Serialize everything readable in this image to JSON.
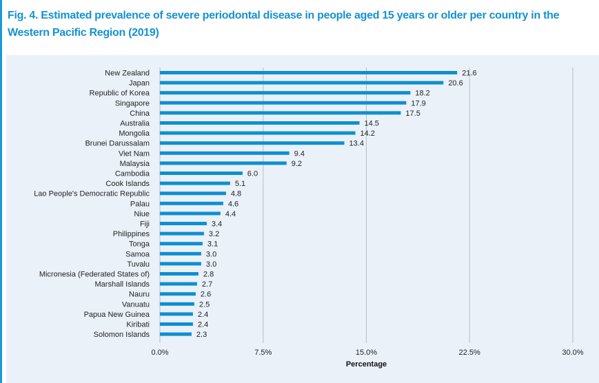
{
  "title": "Fig. 4. Estimated prevalence of severe periodontal disease in people aged 15 years or older per country in the Western Pacific Region (2019)",
  "colors": {
    "bar": "#0e8fd0",
    "grid": "#b9bfc6",
    "panel": "#eaf1f9",
    "title": "#1592d0"
  },
  "chart_data": {
    "type": "bar",
    "orientation": "horizontal",
    "xlabel": "Percentage",
    "xlim": [
      0,
      30
    ],
    "xticks": [
      0,
      7.5,
      15,
      22.5,
      30
    ],
    "xtick_labels": [
      "0.0%",
      "7.5%",
      "15.0%",
      "22.5%",
      "30.0%"
    ],
    "grid": true,
    "categories": [
      "New Zealand",
      "Japan",
      "Republic of Korea",
      "Singapore",
      "China",
      "Australia",
      "Mongolia",
      "Brunei Darussalam",
      "Viet Nam",
      "Malaysia",
      "Cambodia",
      "Cook Islands",
      "Lao People's Democratic Republic",
      "Palau",
      "Niue",
      "Fiji",
      "Philippines",
      "Tonga",
      "Samoa",
      "Tuvalu",
      "Micronesia (Federated States of)",
      "Marshall Islands",
      "Nauru",
      "Vanuatu",
      "Papua New Guinea",
      "Kiribati",
      "Solomon Islands"
    ],
    "values": [
      21.6,
      20.6,
      18.2,
      17.9,
      17.5,
      14.5,
      14.2,
      13.4,
      9.4,
      9.2,
      6.0,
      5.1,
      4.8,
      4.6,
      4.4,
      3.4,
      3.2,
      3.1,
      3.0,
      3.0,
      2.8,
      2.7,
      2.6,
      2.5,
      2.4,
      2.4,
      2.3
    ],
    "value_labels": [
      "21.6",
      "20.6",
      "18.2",
      "17.9",
      "17.5",
      "14.5",
      "14.2",
      "13.4",
      "9.4",
      "9.2",
      "6.0",
      "5.1",
      "4.8",
      "4.6",
      "4.4",
      "3.4",
      "3.2",
      "3.1",
      "3.0",
      "3.0",
      "2.8",
      "2.7",
      "2.6",
      "2.5",
      "2.4",
      "2.4",
      "2.3"
    ]
  }
}
